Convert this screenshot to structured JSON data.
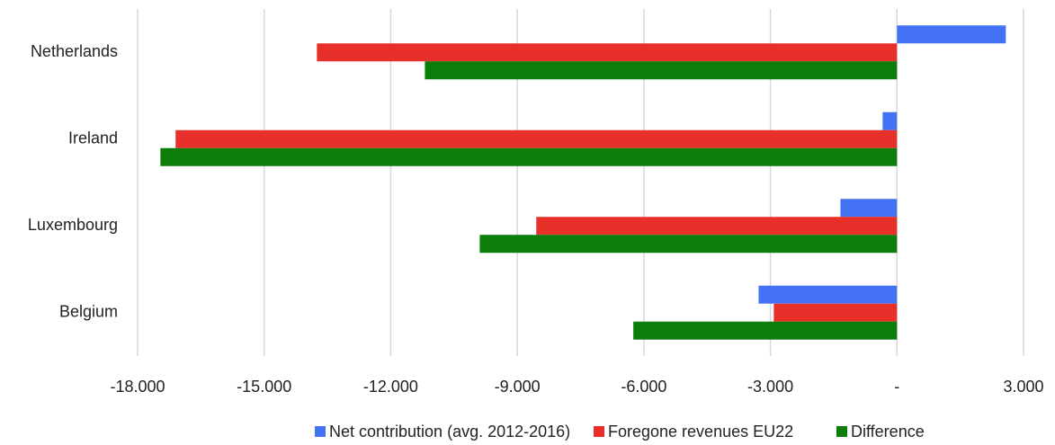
{
  "chart_data": {
    "type": "hbar",
    "categories": [
      "Netherlands",
      "Ireland",
      "Luxembourg",
      "Belgium"
    ],
    "series": [
      {
        "name": "Net contribution (avg. 2012-2016)",
        "color": "#4472f4",
        "values": [
          2580,
          -340,
          -1340,
          -3280
        ]
      },
      {
        "name": "Foregone revenues EU22",
        "color": "#e8302a",
        "values": [
          -13750,
          -17100,
          -8550,
          -2920
        ]
      },
      {
        "name": "Difference",
        "color": "#0a7d0a",
        "values": [
          -11190,
          -17460,
          -9890,
          -6250
        ]
      }
    ],
    "xlim": [
      -18000,
      3000
    ],
    "xticks": [
      {
        "value": -18000,
        "label": "-18.000"
      },
      {
        "value": -15000,
        "label": "-15.000"
      },
      {
        "value": -12000,
        "label": "-12.000"
      },
      {
        "value": -9000,
        "label": "-9.000"
      },
      {
        "value": -6000,
        "label": "-6.000"
      },
      {
        "value": -3000,
        "label": "-3.000"
      },
      {
        "value": 0,
        "label": "-"
      },
      {
        "value": 3000,
        "label": "3.000"
      }
    ],
    "grid": true,
    "legend": "bottom"
  }
}
